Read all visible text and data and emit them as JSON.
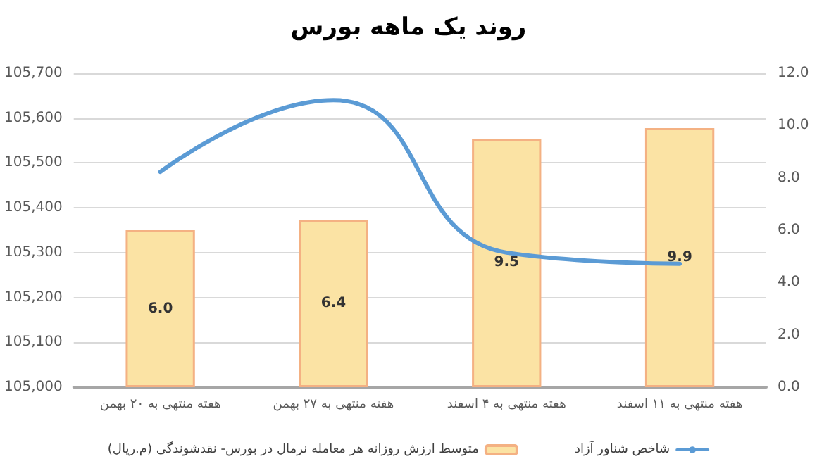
{
  "chart_data": {
    "type": "bar",
    "title": "روند یک ماهه بورس",
    "categories": [
      "هفته منتهی به ۲۰ بهمن",
      "هفته منتهی به ۲۷ بهمن",
      "هفته منتهی به ۴ اسفند",
      "هفته منتهی به ۱۱ اسفند"
    ],
    "series": [
      {
        "name": "متوسط ارزش روزانه هر معامله نرمال در بورس- نقدشوندگی (م.ریال)",
        "axis": "y2",
        "color": "#fbe3a4",
        "values": [
          6.0,
          6.4,
          9.5,
          9.9
        ],
        "value_labels": [
          "6.0",
          "6.4",
          "9.5",
          "9.9"
        ]
      },
      {
        "name": "شاخص شناور آزاد",
        "type": "line",
        "color": "#5b9bd5",
        "values": [
          105480,
          105640,
          105300,
          105275
        ]
      }
    ],
    "ylim": [
      105000,
      105700
    ],
    "yticks": [
      {
        "value": 105000,
        "label": "105,000"
      },
      {
        "value": 105100,
        "label": "105,100"
      },
      {
        "value": 105200,
        "label": "105,200"
      },
      {
        "value": 105300,
        "label": "105,300"
      },
      {
        "value": 105400,
        "label": "105,400"
      },
      {
        "value": 105500,
        "label": "105,500"
      },
      {
        "value": 105600,
        "label": "105,600"
      },
      {
        "value": 105700,
        "label": "105,700"
      }
    ],
    "y2lim": [
      0,
      12
    ],
    "y2ticks": [
      {
        "value": 0,
        "label": "0.0"
      },
      {
        "value": 2,
        "label": "2.0"
      },
      {
        "value": 4,
        "label": "4.0"
      },
      {
        "value": 6,
        "label": "6.0"
      },
      {
        "value": 8,
        "label": "8.0"
      },
      {
        "value": 10,
        "label": "10.0"
      },
      {
        "value": 12,
        "label": "12.0"
      }
    ],
    "grid": "y",
    "legend": "bottom",
    "marker": "none"
  }
}
